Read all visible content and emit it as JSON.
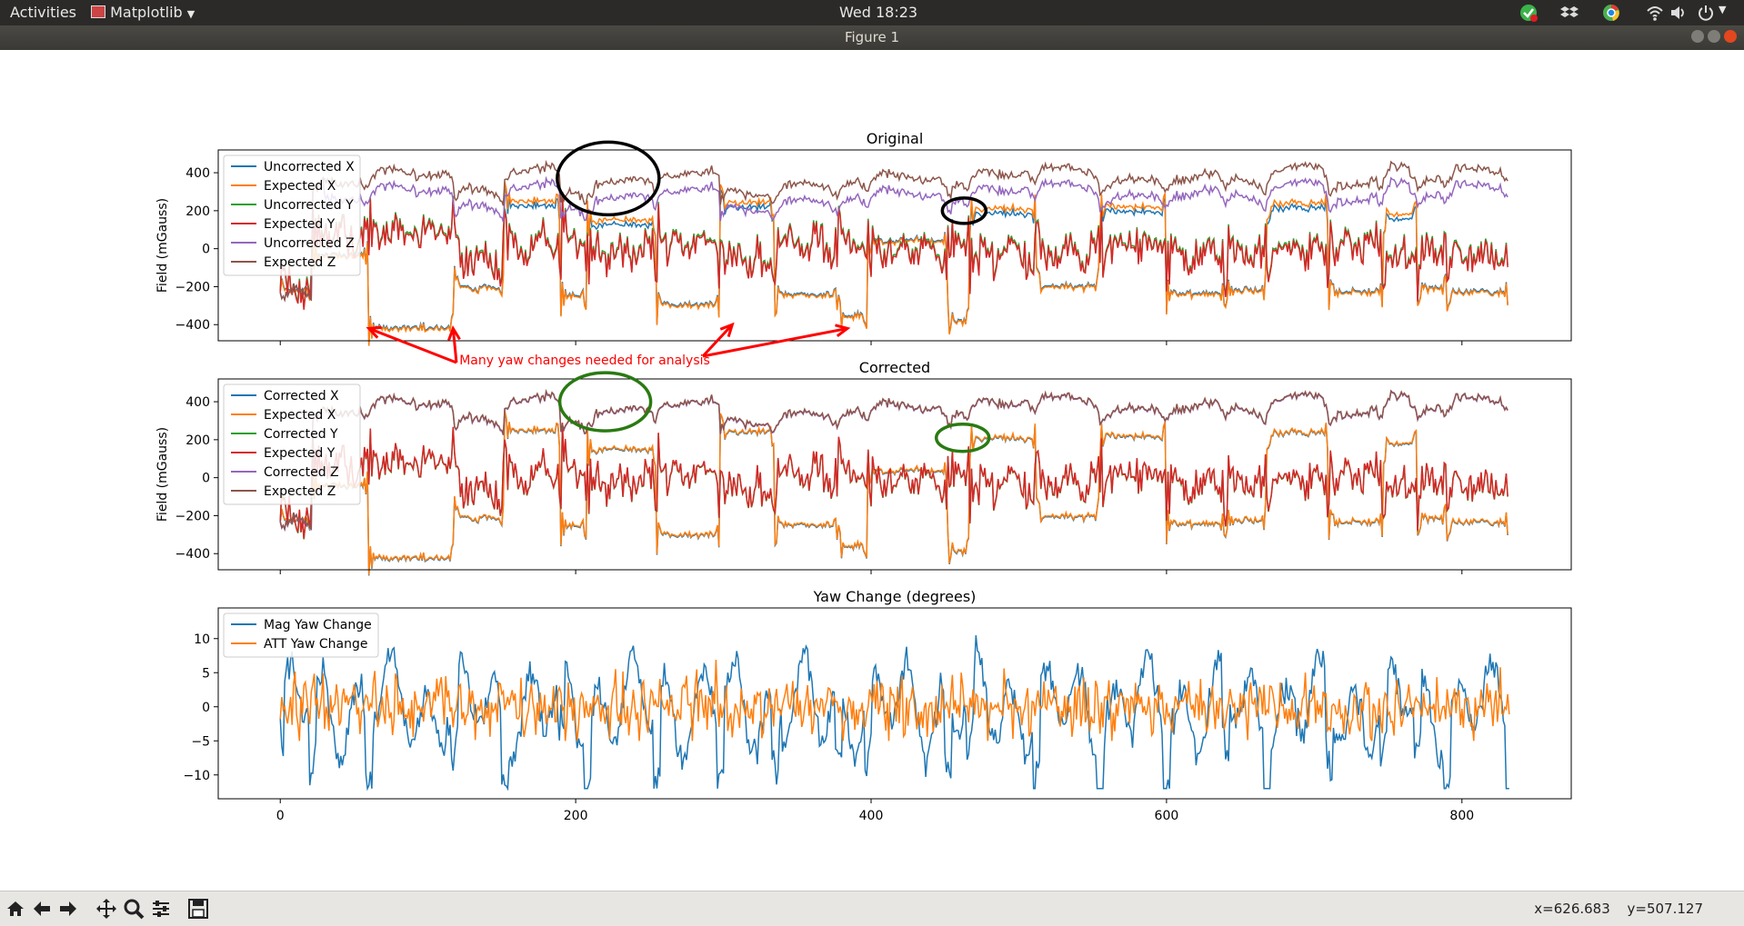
{
  "topbar": {
    "activities": "Activities",
    "app_name": "Matplotlib",
    "clock": "Wed 18:23"
  },
  "window": {
    "title": "Figure 1"
  },
  "status": {
    "coords": "x=626.683    y=507.127"
  },
  "colors": {
    "c0": "#1f77b4",
    "c1": "#ff7f0e",
    "c2": "#2ca02c",
    "c3": "#d62728",
    "c4": "#9467bd",
    "c5": "#8c564b",
    "annot_red": "#ff0000",
    "annot_green": "#2a7a12",
    "annot_black": "#000000"
  },
  "chart_data": [
    {
      "type": "line",
      "title": "Original",
      "ylabel": "Field (mGauss)",
      "xlim": [
        -42,
        874
      ],
      "ylim": [
        -485,
        520
      ],
      "yticks": [
        -400,
        -200,
        0,
        200,
        400
      ],
      "legend_loc": "upper-left",
      "series": [
        {
          "name": "Uncorrected X",
          "color": "#1f77b4",
          "pattern": "x_unc"
        },
        {
          "name": "Expected X",
          "color": "#ff7f0e",
          "pattern": "x_exp"
        },
        {
          "name": "Uncorrected Y",
          "color": "#2ca02c",
          "pattern": "y_unc"
        },
        {
          "name": "Expected Y",
          "color": "#d62728",
          "pattern": "y_exp"
        },
        {
          "name": "Uncorrected Z",
          "color": "#9467bd",
          "pattern": "z_unc"
        },
        {
          "name": "Expected Z",
          "color": "#8c564b",
          "pattern": "z_exp"
        }
      ],
      "annotation": "Many yaw changes needed for analysis"
    },
    {
      "type": "line",
      "title": "Corrected",
      "ylabel": "Field (mGauss)",
      "xlim": [
        -42,
        874
      ],
      "ylim": [
        -485,
        520
      ],
      "yticks": [
        -400,
        -200,
        0,
        200,
        400
      ],
      "legend_loc": "upper-left",
      "series": [
        {
          "name": "Corrected X",
          "color": "#1f77b4",
          "pattern": "x_cor"
        },
        {
          "name": "Expected X",
          "color": "#ff7f0e",
          "pattern": "x_exp"
        },
        {
          "name": "Corrected Y",
          "color": "#2ca02c",
          "pattern": "y_cor"
        },
        {
          "name": "Expected Y",
          "color": "#d62728",
          "pattern": "y_exp"
        },
        {
          "name": "Corrected Z",
          "color": "#9467bd",
          "pattern": "z_cor"
        },
        {
          "name": "Expected Z",
          "color": "#8c564b",
          "pattern": "z_exp"
        }
      ]
    },
    {
      "type": "line",
      "title": "Yaw Change (degrees)",
      "ylabel": "",
      "xlim": [
        -42,
        874
      ],
      "ylim": [
        -13.5,
        14.5
      ],
      "yticks": [
        -10,
        -5,
        0,
        5,
        10
      ],
      "xticks": [
        0,
        200,
        400,
        600,
        800
      ],
      "legend_loc": "upper-left",
      "series": [
        {
          "name": "Mag Yaw Change",
          "color": "#1f77b4",
          "pattern": "mag_yaw"
        },
        {
          "name": "ATT Yaw Change",
          "color": "#ff7f0e",
          "pattern": "att_yaw"
        }
      ]
    }
  ]
}
